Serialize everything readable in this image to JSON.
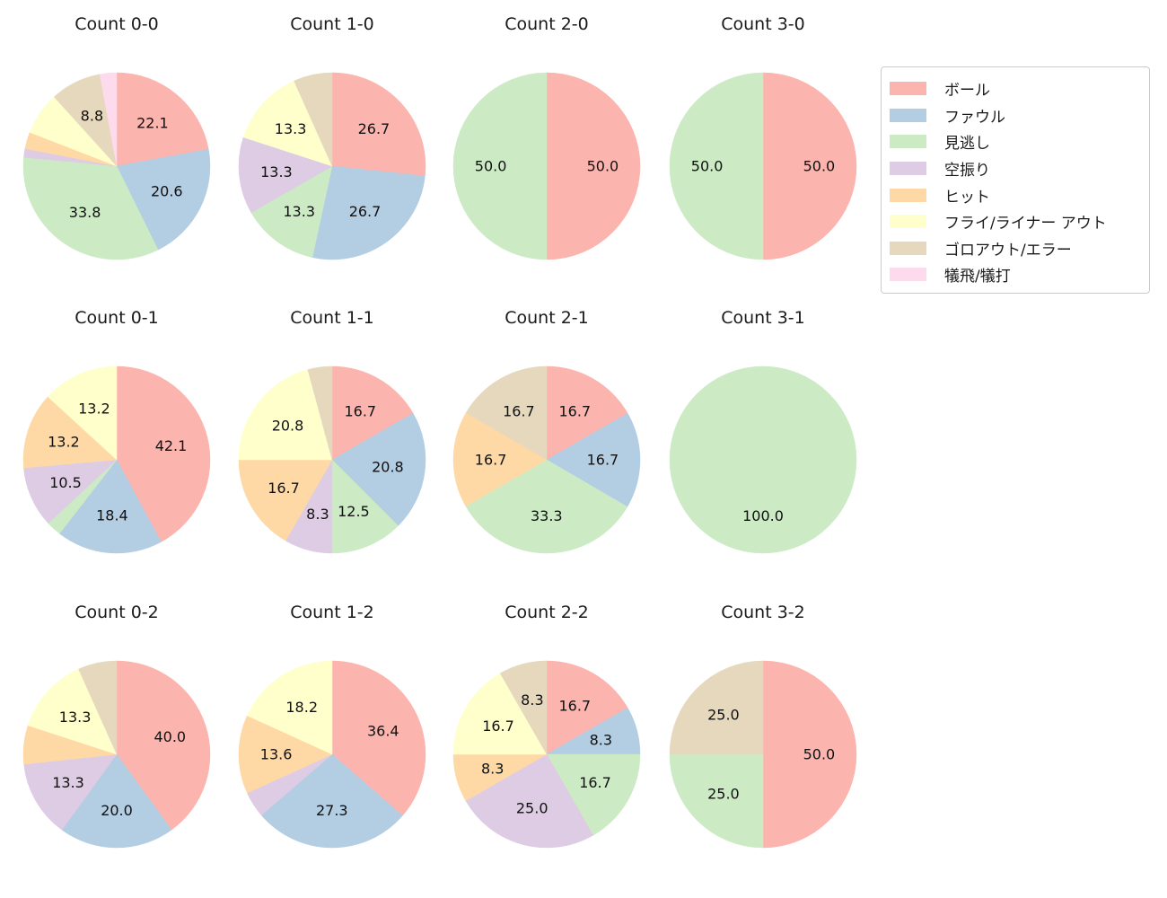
{
  "figure": {
    "background_color": "#ffffff"
  },
  "legend": {
    "border_color": "#cccccc",
    "position": "top-right",
    "items": [
      {
        "label": "ボール",
        "color": "#fbb4ae"
      },
      {
        "label": "ファウル",
        "color": "#b3cde3"
      },
      {
        "label": "見逃し",
        "color": "#ccebc5"
      },
      {
        "label": "空振り",
        "color": "#decbe4"
      },
      {
        "label": "ヒット",
        "color": "#fed9a6"
      },
      {
        "label": "フライ/ライナー アウト",
        "color": "#ffffcc"
      },
      {
        "label": "ゴロアウト/エラー",
        "color": "#e5d8bd"
      },
      {
        "label": "犠飛/犠打",
        "color": "#fddaec"
      }
    ]
  },
  "chart_data": [
    {
      "type": "pie",
      "title": "Count 0-0",
      "grid": {
        "row": 0,
        "col": 0
      },
      "start_angle": "top",
      "direction": "clockwise",
      "label_distance": 0.6,
      "slices": [
        {
          "category": "ボール",
          "value": 22.1,
          "label": "22.1"
        },
        {
          "category": "ファウル",
          "value": 20.6,
          "label": "20.6"
        },
        {
          "category": "見逃し",
          "value": 33.8,
          "label": "33.8"
        },
        {
          "category": "空振り",
          "value": 1.5,
          "label": ""
        },
        {
          "category": "ヒット",
          "value": 2.9,
          "label": ""
        },
        {
          "category": "フライ/ライナー アウト",
          "value": 7.4,
          "label": ""
        },
        {
          "category": "ゴロアウト/エラー",
          "value": 8.8,
          "label": "8.8"
        },
        {
          "category": "犠飛/犠打",
          "value": 2.9,
          "label": ""
        }
      ]
    },
    {
      "type": "pie",
      "title": "Count 1-0",
      "grid": {
        "row": 0,
        "col": 1
      },
      "start_angle": "top",
      "direction": "clockwise",
      "label_distance": 0.6,
      "slices": [
        {
          "category": "ボール",
          "value": 26.7,
          "label": "26.7"
        },
        {
          "category": "ファウル",
          "value": 26.7,
          "label": "26.7"
        },
        {
          "category": "見逃し",
          "value": 13.3,
          "label": "13.3"
        },
        {
          "category": "空振り",
          "value": 13.3,
          "label": "13.3"
        },
        {
          "category": "フライ/ライナー アウト",
          "value": 13.3,
          "label": "13.3"
        },
        {
          "category": "ゴロアウト/エラー",
          "value": 6.7,
          "label": ""
        }
      ]
    },
    {
      "type": "pie",
      "title": "Count 2-0",
      "grid": {
        "row": 0,
        "col": 2
      },
      "start_angle": "top",
      "direction": "clockwise",
      "label_distance": 0.6,
      "slices": [
        {
          "category": "ボール",
          "value": 50.0,
          "label": "50.0"
        },
        {
          "category": "見逃し",
          "value": 50.0,
          "label": "50.0"
        }
      ]
    },
    {
      "type": "pie",
      "title": "Count 3-0",
      "grid": {
        "row": 0,
        "col": 3
      },
      "start_angle": "top",
      "direction": "clockwise",
      "label_distance": 0.6,
      "slices": [
        {
          "category": "ボール",
          "value": 50.0,
          "label": "50.0"
        },
        {
          "category": "見逃し",
          "value": 50.0,
          "label": "50.0"
        }
      ]
    },
    {
      "type": "pie",
      "title": "Count 0-1",
      "grid": {
        "row": 1,
        "col": 0
      },
      "start_angle": "top",
      "direction": "clockwise",
      "label_distance": 0.6,
      "slices": [
        {
          "category": "ボール",
          "value": 42.1,
          "label": "42.1"
        },
        {
          "category": "ファウル",
          "value": 18.4,
          "label": "18.4"
        },
        {
          "category": "見逃し",
          "value": 2.6,
          "label": ""
        },
        {
          "category": "空振り",
          "value": 10.5,
          "label": "10.5"
        },
        {
          "category": "ヒット",
          "value": 13.2,
          "label": "13.2"
        },
        {
          "category": "フライ/ライナー アウト",
          "value": 13.2,
          "label": "13.2"
        }
      ]
    },
    {
      "type": "pie",
      "title": "Count 1-1",
      "grid": {
        "row": 1,
        "col": 1
      },
      "start_angle": "top",
      "direction": "clockwise",
      "label_distance": 0.6,
      "slices": [
        {
          "category": "ボール",
          "value": 16.7,
          "label": "16.7"
        },
        {
          "category": "ファウル",
          "value": 20.8,
          "label": "20.8"
        },
        {
          "category": "見逃し",
          "value": 12.5,
          "label": "12.5"
        },
        {
          "category": "空振り",
          "value": 8.3,
          "label": "8.3"
        },
        {
          "category": "ヒット",
          "value": 16.7,
          "label": "16.7"
        },
        {
          "category": "フライ/ライナー アウト",
          "value": 20.8,
          "label": "20.8"
        },
        {
          "category": "ゴロアウト/エラー",
          "value": 4.2,
          "label": ""
        }
      ]
    },
    {
      "type": "pie",
      "title": "Count 2-1",
      "grid": {
        "row": 1,
        "col": 2
      },
      "start_angle": "top",
      "direction": "clockwise",
      "label_distance": 0.6,
      "slices": [
        {
          "category": "ボール",
          "value": 16.7,
          "label": "16.7"
        },
        {
          "category": "ファウル",
          "value": 16.7,
          "label": "16.7"
        },
        {
          "category": "見逃し",
          "value": 33.3,
          "label": "33.3"
        },
        {
          "category": "ヒット",
          "value": 16.7,
          "label": "16.7"
        },
        {
          "category": "ゴロアウト/エラー",
          "value": 16.7,
          "label": "16.7"
        }
      ]
    },
    {
      "type": "pie",
      "title": "Count 3-1",
      "grid": {
        "row": 1,
        "col": 3
      },
      "start_angle": "top",
      "direction": "clockwise",
      "label_distance": 0.6,
      "slices": [
        {
          "category": "見逃し",
          "value": 100.0,
          "label": "100.0"
        }
      ]
    },
    {
      "type": "pie",
      "title": "Count 0-2",
      "grid": {
        "row": 2,
        "col": 0
      },
      "start_angle": "top",
      "direction": "clockwise",
      "label_distance": 0.6,
      "slices": [
        {
          "category": "ボール",
          "value": 40.0,
          "label": "40.0"
        },
        {
          "category": "ファウル",
          "value": 20.0,
          "label": "20.0"
        },
        {
          "category": "空振り",
          "value": 13.3,
          "label": "13.3"
        },
        {
          "category": "ヒット",
          "value": 6.7,
          "label": ""
        },
        {
          "category": "フライ/ライナー アウト",
          "value": 13.3,
          "label": "13.3"
        },
        {
          "category": "ゴロアウト/エラー",
          "value": 6.7,
          "label": ""
        }
      ]
    },
    {
      "type": "pie",
      "title": "Count 1-2",
      "grid": {
        "row": 2,
        "col": 1
      },
      "start_angle": "top",
      "direction": "clockwise",
      "label_distance": 0.6,
      "slices": [
        {
          "category": "ボール",
          "value": 36.4,
          "label": "36.4"
        },
        {
          "category": "ファウル",
          "value": 27.3,
          "label": "27.3"
        },
        {
          "category": "空振り",
          "value": 4.5,
          "label": ""
        },
        {
          "category": "ヒット",
          "value": 13.6,
          "label": "13.6"
        },
        {
          "category": "フライ/ライナー アウト",
          "value": 18.2,
          "label": "18.2"
        }
      ]
    },
    {
      "type": "pie",
      "title": "Count 2-2",
      "grid": {
        "row": 2,
        "col": 2
      },
      "start_angle": "top",
      "direction": "clockwise",
      "label_distance": 0.6,
      "slices": [
        {
          "category": "ボール",
          "value": 16.7,
          "label": "16.7"
        },
        {
          "category": "ファウル",
          "value": 8.3,
          "label": "8.3"
        },
        {
          "category": "見逃し",
          "value": 16.7,
          "label": "16.7"
        },
        {
          "category": "空振り",
          "value": 25.0,
          "label": "25.0"
        },
        {
          "category": "ヒット",
          "value": 8.3,
          "label": "8.3"
        },
        {
          "category": "フライ/ライナー アウト",
          "value": 16.7,
          "label": "16.7"
        },
        {
          "category": "ゴロアウト/エラー",
          "value": 8.3,
          "label": "8.3"
        }
      ]
    },
    {
      "type": "pie",
      "title": "Count 3-2",
      "grid": {
        "row": 2,
        "col": 3
      },
      "start_angle": "top",
      "direction": "clockwise",
      "label_distance": 0.6,
      "slices": [
        {
          "category": "ボール",
          "value": 50.0,
          "label": "50.0"
        },
        {
          "category": "見逃し",
          "value": 25.0,
          "label": "25.0"
        },
        {
          "category": "ゴロアウト/エラー",
          "value": 25.0,
          "label": "25.0"
        }
      ]
    }
  ]
}
